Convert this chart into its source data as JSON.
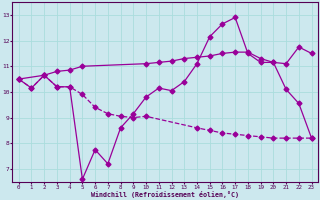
{
  "xlabel": "Windchill (Refroidissement éolien,°C)",
  "bg_color": "#cce8ee",
  "line_color": "#990099",
  "grid_color": "#aadddd",
  "xmin": -0.5,
  "xmax": 23.5,
  "ymin": 6.5,
  "ymax": 13.5,
  "yticks": [
    7,
    8,
    9,
    10,
    11,
    12,
    13
  ],
  "xticks": [
    0,
    1,
    2,
    3,
    4,
    5,
    6,
    7,
    8,
    9,
    10,
    11,
    12,
    13,
    14,
    15,
    16,
    17,
    18,
    19,
    20,
    21,
    22,
    23
  ],
  "line1_x": [
    0,
    1,
    2,
    3,
    4,
    5,
    6,
    7,
    8,
    9,
    10,
    14,
    15,
    16,
    17,
    18,
    19,
    20,
    21,
    22,
    23
  ],
  "line1_y": [
    10.5,
    10.15,
    10.65,
    10.2,
    10.2,
    9.9,
    9.4,
    9.15,
    9.05,
    9.0,
    9.05,
    8.6,
    8.5,
    8.4,
    8.35,
    8.3,
    8.25,
    8.2,
    8.2,
    8.2,
    8.2
  ],
  "line2_x": [
    0,
    2,
    3,
    4,
    5,
    10,
    11,
    12,
    13,
    14,
    15,
    16,
    17,
    18,
    19,
    20,
    21,
    22,
    23
  ],
  "line2_y": [
    10.5,
    10.65,
    10.8,
    10.85,
    11.0,
    11.1,
    11.15,
    11.2,
    11.3,
    11.35,
    11.4,
    11.5,
    11.55,
    11.55,
    11.3,
    11.15,
    11.1,
    11.75,
    11.5
  ],
  "line3_x": [
    0,
    1,
    2,
    3,
    4,
    5,
    6,
    7,
    8,
    9,
    10,
    11,
    12,
    13,
    14,
    15,
    16,
    17,
    18,
    19,
    20,
    21,
    22,
    23
  ],
  "line3_y": [
    10.5,
    10.15,
    10.65,
    10.2,
    10.2,
    6.6,
    7.75,
    7.2,
    8.6,
    9.15,
    9.8,
    10.15,
    10.05,
    10.4,
    11.1,
    12.15,
    12.65,
    12.9,
    11.5,
    11.15,
    11.15,
    10.1,
    9.55,
    8.2
  ]
}
